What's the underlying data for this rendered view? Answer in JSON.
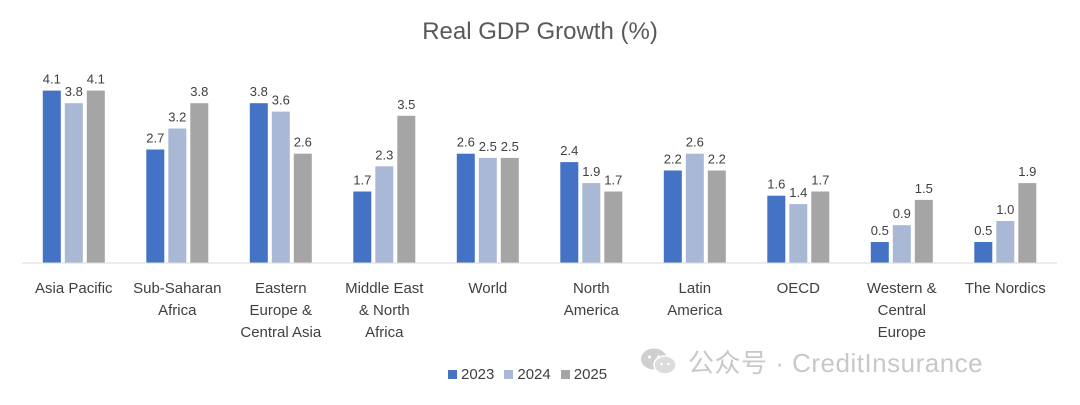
{
  "chart_data": {
    "type": "bar",
    "title": "Real GDP Growth (%)",
    "xlabel": "",
    "ylabel": "",
    "ylim": [
      0,
      4.4
    ],
    "grid": false,
    "legend_position": "bottom",
    "categories": [
      [
        "Asia Pacific"
      ],
      [
        "Sub-Saharan",
        "Africa"
      ],
      [
        "Eastern",
        "Europe &",
        "Central Asia"
      ],
      [
        "Middle East",
        "& North",
        "Africa"
      ],
      [
        "World"
      ],
      [
        "North",
        "America"
      ],
      [
        "Latin",
        "America"
      ],
      [
        "OECD"
      ],
      [
        "Western &",
        "Central",
        "Europe"
      ],
      [
        "The Nordics"
      ]
    ],
    "series": [
      {
        "name": "2023",
        "color": "#4472C4",
        "values": [
          4.1,
          2.7,
          3.8,
          1.7,
          2.6,
          2.4,
          2.2,
          1.6,
          0.5,
          0.5
        ]
      },
      {
        "name": "2024",
        "color": "#A9B8D4",
        "values": [
          3.8,
          3.2,
          3.6,
          2.3,
          2.5,
          1.9,
          2.6,
          1.4,
          0.9,
          1.0
        ]
      },
      {
        "name": "2025",
        "color": "#A5A5A5",
        "values": [
          4.1,
          3.8,
          2.6,
          3.5,
          2.5,
          1.7,
          2.2,
          1.7,
          1.5,
          1.9
        ]
      }
    ],
    "data_labels": [
      [
        "4.1",
        "2.7",
        "3.8",
        "1.7",
        "2.6",
        "2.4",
        "2.2",
        "1.6",
        "0.5",
        "0.5"
      ],
      [
        "3.8",
        "3.2",
        "3.6",
        "2.3",
        "2.5",
        "1.9",
        "2.6",
        "1.4",
        "0.9",
        "1.0"
      ],
      [
        "4.1",
        "3.8",
        "2.6",
        "3.5",
        "2.5",
        "1.7",
        "2.2",
        "1.7",
        "1.5",
        "1.9"
      ]
    ]
  },
  "watermark": {
    "text": "公众号 · CreditInsurance",
    "icon": "wechat-icon"
  }
}
